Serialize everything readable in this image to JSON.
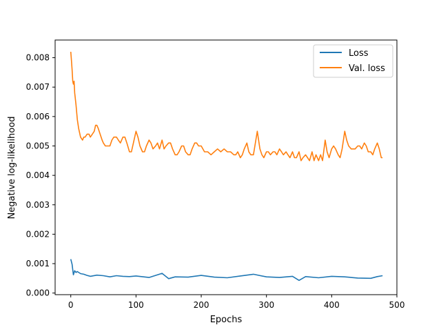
{
  "chart_data": {
    "type": "line",
    "xlabel": "Epochs",
    "ylabel": "Negative log-likelihood",
    "xlim": [
      -24,
      500
    ],
    "ylim": [
      -5.48e-05,
      0.0086
    ],
    "x_ticks": [
      0,
      100,
      200,
      300,
      400,
      500
    ],
    "x_tick_labels": [
      "0",
      "100",
      "200",
      "300",
      "400",
      "500"
    ],
    "y_ticks": [
      0.0,
      0.001,
      0.002,
      0.003,
      0.004,
      0.005,
      0.006,
      0.007,
      0.008
    ],
    "y_tick_labels": [
      "0.000",
      "0.001",
      "0.002",
      "0.003",
      "0.004",
      "0.005",
      "0.006",
      "0.007",
      "0.008"
    ],
    "grid": false,
    "legend_position": "top-right",
    "series": [
      {
        "name": "Loss",
        "color": "#1f77b4",
        "x": [
          0,
          2,
          4,
          6,
          8,
          10,
          15,
          20,
          25,
          30,
          40,
          50,
          60,
          70,
          80,
          90,
          100,
          120,
          140,
          150,
          160,
          180,
          200,
          220,
          240,
          260,
          280,
          300,
          320,
          340,
          350,
          360,
          380,
          400,
          420,
          440,
          460,
          470,
          478
        ],
        "y": [
          0.00115,
          0.00098,
          0.00062,
          0.00076,
          0.0007,
          0.00073,
          0.00066,
          0.00064,
          0.0006,
          0.00057,
          0.00061,
          0.00059,
          0.00055,
          0.00059,
          0.00057,
          0.00056,
          0.00058,
          0.00053,
          0.00067,
          0.00049,
          0.00055,
          0.00054,
          0.0006,
          0.00054,
          0.00052,
          0.00058,
          0.00064,
          0.00055,
          0.00053,
          0.00057,
          0.00043,
          0.00056,
          0.00052,
          0.00057,
          0.00055,
          0.00051,
          0.0005,
          0.00056,
          0.00059
        ]
      },
      {
        "name": "Val. loss",
        "color": "#ff7f0e",
        "x": [
          0,
          1,
          2,
          3,
          4,
          5,
          6,
          8,
          10,
          12,
          15,
          18,
          20,
          22,
          25,
          28,
          30,
          33,
          36,
          38,
          40,
          42,
          45,
          48,
          50,
          53,
          56,
          60,
          63,
          66,
          70,
          73,
          76,
          80,
          83,
          86,
          90,
          93,
          96,
          100,
          103,
          106,
          110,
          113,
          116,
          120,
          123,
          126,
          130,
          133,
          136,
          140,
          143,
          146,
          150,
          153,
          156,
          160,
          163,
          166,
          170,
          173,
          176,
          180,
          183,
          186,
          190,
          193,
          196,
          200,
          205,
          210,
          215,
          220,
          225,
          230,
          235,
          240,
          245,
          250,
          253,
          256,
          260,
          263,
          266,
          270,
          273,
          276,
          280,
          283,
          286,
          290,
          293,
          296,
          300,
          303,
          306,
          310,
          313,
          316,
          320,
          323,
          326,
          330,
          333,
          336,
          340,
          343,
          346,
          350,
          353,
          356,
          360,
          363,
          366,
          370,
          373,
          376,
          380,
          383,
          386,
          390,
          393,
          396,
          400,
          403,
          406,
          410,
          413,
          416,
          420,
          423,
          426,
          430,
          433,
          436,
          440,
          443,
          446,
          450,
          453,
          456,
          460,
          463,
          466,
          470,
          473,
          476,
          478
        ],
        "y": [
          0.0082,
          0.0079,
          0.0076,
          0.0072,
          0.0071,
          0.0072,
          0.0068,
          0.0064,
          0.0059,
          0.0056,
          0.0053,
          0.0052,
          0.0053,
          0.0053,
          0.0054,
          0.0054,
          0.0053,
          0.0054,
          0.0055,
          0.0057,
          0.0057,
          0.0056,
          0.0054,
          0.0052,
          0.0051,
          0.005,
          0.005,
          0.005,
          0.0052,
          0.0053,
          0.0053,
          0.0052,
          0.0051,
          0.0053,
          0.0053,
          0.0051,
          0.0048,
          0.0048,
          0.0051,
          0.0055,
          0.0053,
          0.005,
          0.0048,
          0.0048,
          0.005,
          0.0052,
          0.0051,
          0.0049,
          0.005,
          0.0051,
          0.0049,
          0.0052,
          0.0049,
          0.005,
          0.0051,
          0.0051,
          0.0049,
          0.0047,
          0.0047,
          0.0048,
          0.005,
          0.005,
          0.0048,
          0.0047,
          0.0047,
          0.0049,
          0.0051,
          0.0051,
          0.005,
          0.005,
          0.0048,
          0.0048,
          0.0047,
          0.0048,
          0.0049,
          0.0048,
          0.0049,
          0.0048,
          0.0048,
          0.0047,
          0.0047,
          0.0048,
          0.0046,
          0.0047,
          0.0049,
          0.0051,
          0.0048,
          0.0047,
          0.0047,
          0.0051,
          0.0055,
          0.0049,
          0.0047,
          0.0046,
          0.0048,
          0.0048,
          0.0047,
          0.0048,
          0.0048,
          0.0047,
          0.0049,
          0.0048,
          0.0047,
          0.0048,
          0.0047,
          0.0046,
          0.0048,
          0.0046,
          0.0046,
          0.0048,
          0.0045,
          0.0046,
          0.0047,
          0.0046,
          0.0045,
          0.0048,
          0.0045,
          0.0047,
          0.0045,
          0.0047,
          0.0045,
          0.0052,
          0.0048,
          0.0046,
          0.0049,
          0.005,
          0.0049,
          0.0047,
          0.0046,
          0.0049,
          0.0055,
          0.0052,
          0.005,
          0.0049,
          0.0049,
          0.0049,
          0.005,
          0.005,
          0.0049,
          0.0051,
          0.005,
          0.0048,
          0.0048,
          0.0047,
          0.0049,
          0.0051,
          0.0049,
          0.0046,
          0.0046
        ]
      }
    ]
  }
}
